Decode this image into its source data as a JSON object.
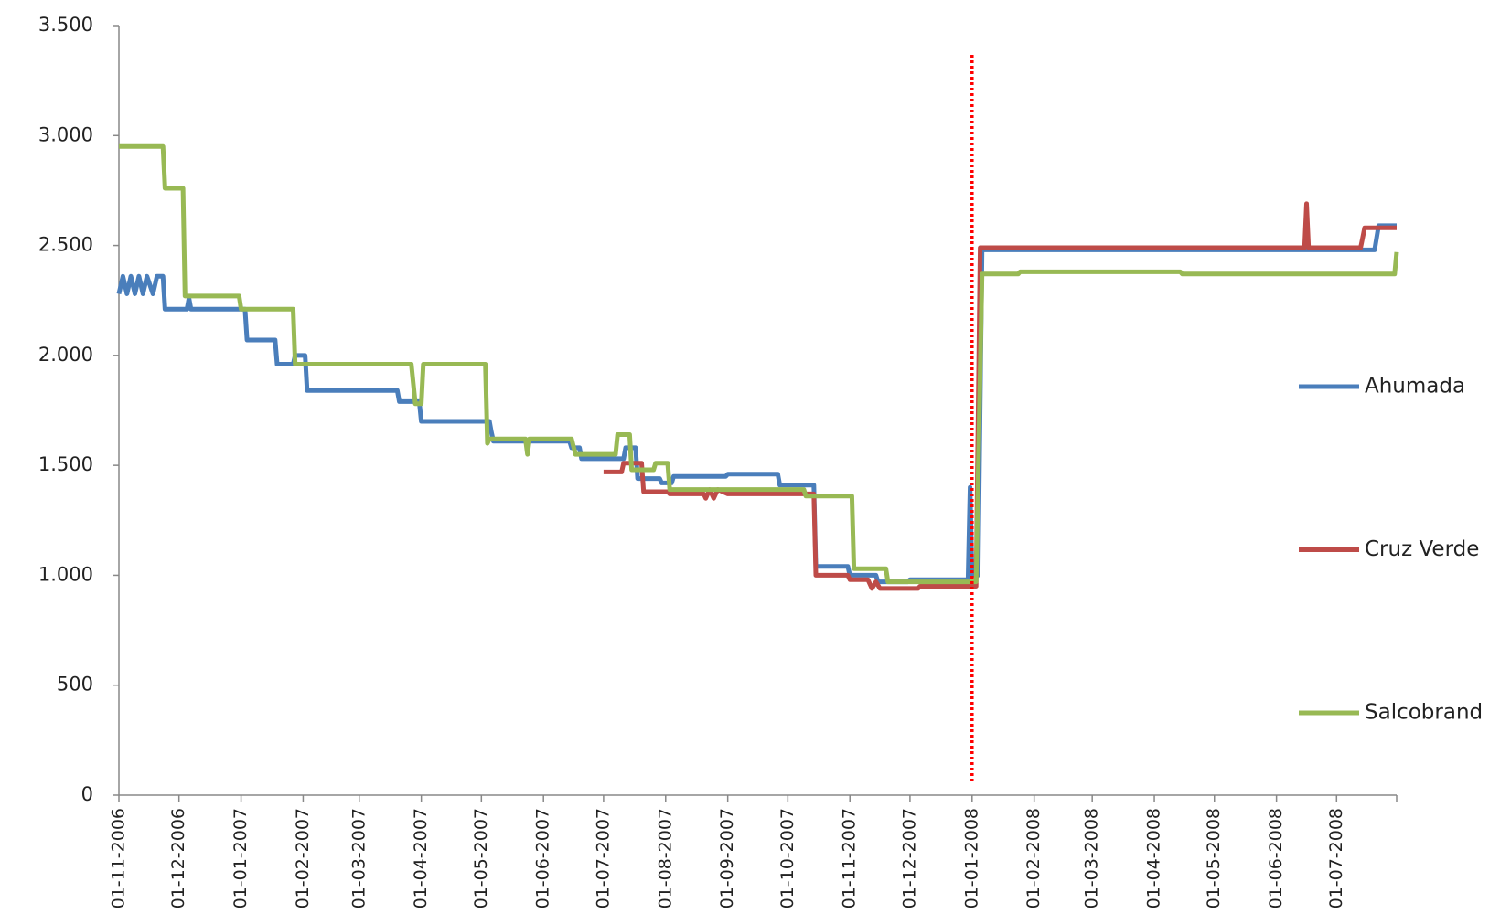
{
  "chart_data": {
    "type": "line",
    "xlim": [
      "2006-11-01",
      "2008-07-31"
    ],
    "xticks": [
      {
        "value": "2006-11-01",
        "label": "01-11-2006"
      },
      {
        "value": "2006-12-01",
        "label": "01-12-2006"
      },
      {
        "value": "2007-01-01",
        "label": "01-01-2007"
      },
      {
        "value": "2007-02-01",
        "label": "01-02-2007"
      },
      {
        "value": "2007-03-01",
        "label": "01-03-2007"
      },
      {
        "value": "2007-04-01",
        "label": "01-04-2007"
      },
      {
        "value": "2007-05-01",
        "label": "01-05-2007"
      },
      {
        "value": "2007-06-01",
        "label": "01-06-2007"
      },
      {
        "value": "2007-07-01",
        "label": "01-07-2007"
      },
      {
        "value": "2007-08-01",
        "label": "01-08-2007"
      },
      {
        "value": "2007-09-01",
        "label": "01-09-2007"
      },
      {
        "value": "2007-10-01",
        "label": "01-10-2007"
      },
      {
        "value": "2007-11-01",
        "label": "01-11-2007"
      },
      {
        "value": "2007-12-01",
        "label": "01-12-2007"
      },
      {
        "value": "2008-01-01",
        "label": "01-01-2008"
      },
      {
        "value": "2008-02-01",
        "label": "01-02-2008"
      },
      {
        "value": "2008-03-01",
        "label": "01-03-2008"
      },
      {
        "value": "2008-04-01",
        "label": "01-04-2008"
      },
      {
        "value": "2008-05-01",
        "label": "01-05-2008"
      },
      {
        "value": "2008-06-01",
        "label": "01-06-2008"
      },
      {
        "value": "2008-07-01",
        "label": "01-07-2008"
      }
    ],
    "ylim": [
      0,
      3500
    ],
    "yticks": [
      0,
      500,
      {
        "value": 1000,
        "label": "1.000"
      },
      {
        "value": 1500,
        "label": "1.500"
      },
      {
        "value": 2000,
        "label": "2.000"
      },
      {
        "value": 2500,
        "label": "2.500"
      },
      {
        "value": 3000,
        "label": "3.000"
      },
      {
        "value": 3500,
        "label": "3.500"
      }
    ],
    "vline": {
      "x": "2008-01-01",
      "color": "#ff0000"
    },
    "legend": "right",
    "series": [
      {
        "name": "Ahumada",
        "color": "#4a7ebb",
        "x": [
          "2006-11-01",
          "2006-11-03",
          "2006-11-05",
          "2006-11-07",
          "2006-11-09",
          "2006-11-11",
          "2006-11-13",
          "2006-11-15",
          "2006-11-18",
          "2006-11-20",
          "2006-11-23",
          "2006-11-24",
          "2006-12-05",
          "2006-12-06",
          "2006-12-07",
          "2007-01-03",
          "2007-01-04",
          "2007-01-18",
          "2007-01-19",
          "2007-01-27",
          "2007-01-28",
          "2007-02-02",
          "2007-02-03",
          "2007-03-20",
          "2007-03-21",
          "2007-03-31",
          "2007-04-01",
          "2007-05-05",
          "2007-05-06",
          "2007-05-07",
          "2007-06-14",
          "2007-06-15",
          "2007-06-19",
          "2007-06-20",
          "2007-07-11",
          "2007-07-12",
          "2007-07-17",
          "2007-07-18",
          "2007-07-29",
          "2007-07-30",
          "2007-08-04",
          "2007-08-05",
          "2007-08-31",
          "2007-09-01",
          "2007-09-26",
          "2007-09-27",
          "2007-10-14",
          "2007-10-15",
          "2007-10-31",
          "2007-11-01",
          "2007-11-14",
          "2007-11-15",
          "2007-11-30",
          "2007-12-01",
          "2007-12-30",
          "2007-12-31",
          "2008-01-01",
          "2008-01-04",
          "2008-01-06",
          "2008-07-20",
          "2008-07-22",
          "2008-07-31"
        ],
        "values": [
          2280,
          2360,
          2280,
          2360,
          2280,
          2360,
          2280,
          2360,
          2280,
          2360,
          2360,
          2210,
          2210,
          2260,
          2210,
          2210,
          2070,
          2070,
          1960,
          1960,
          2000,
          2000,
          1840,
          1840,
          1790,
          1790,
          1700,
          1700,
          1650,
          1610,
          1610,
          1580,
          1580,
          1530,
          1530,
          1580,
          1580,
          1440,
          1440,
          1420,
          1420,
          1450,
          1450,
          1460,
          1460,
          1410,
          1410,
          1040,
          1040,
          1000,
          1000,
          970,
          970,
          980,
          980,
          1400,
          1000,
          1000,
          2480,
          2480,
          2590,
          2590
        ]
      },
      {
        "name": "Cruz Verde",
        "color": "#be4b48",
        "x": [
          "2007-07-01",
          "2007-07-10",
          "2007-07-11",
          "2007-07-20",
          "2007-07-21",
          "2007-08-02",
          "2007-08-03",
          "2007-08-20",
          "2007-08-21",
          "2007-08-23",
          "2007-08-25",
          "2007-08-27",
          "2007-09-01",
          "2007-10-14",
          "2007-10-15",
          "2007-10-31",
          "2007-11-01",
          "2007-11-10",
          "2007-11-12",
          "2007-11-14",
          "2007-11-16",
          "2007-12-05",
          "2007-12-06",
          "2008-01-03",
          "2008-01-05",
          "2008-06-15",
          "2008-06-16",
          "2008-06-17",
          "2008-07-13",
          "2008-07-15",
          "2008-07-31"
        ],
        "values": [
          1470,
          1470,
          1510,
          1510,
          1380,
          1380,
          1370,
          1370,
          1350,
          1390,
          1350,
          1390,
          1370,
          1370,
          1000,
          1000,
          980,
          980,
          940,
          970,
          940,
          940,
          950,
          950,
          2490,
          2490,
          2690,
          2490,
          2490,
          2580,
          2580
        ]
      },
      {
        "name": "Salcobrand",
        "color": "#98b954",
        "x": [
          "2006-11-01",
          "2006-11-23",
          "2006-11-24",
          "2006-12-03",
          "2006-12-04",
          "2006-12-31",
          "2007-01-01",
          "2007-01-27",
          "2007-01-28",
          "2007-03-27",
          "2007-03-29",
          "2007-04-01",
          "2007-04-02",
          "2007-05-03",
          "2007-05-04",
          "2007-05-05",
          "2007-05-23",
          "2007-05-24",
          "2007-05-25",
          "2007-06-15",
          "2007-06-17",
          "2007-07-07",
          "2007-07-08",
          "2007-07-14",
          "2007-07-15",
          "2007-07-26",
          "2007-07-27",
          "2007-08-02",
          "2007-08-03",
          "2007-10-09",
          "2007-10-10",
          "2007-11-02",
          "2007-11-03",
          "2007-11-19",
          "2007-11-20",
          "2008-01-03",
          "2008-01-06",
          "2008-01-24",
          "2008-01-25",
          "2008-04-14",
          "2008-04-15",
          "2008-07-30",
          "2008-07-31"
        ],
        "values": [
          2950,
          2950,
          2760,
          2760,
          2270,
          2270,
          2210,
          2210,
          1960,
          1960,
          1780,
          1780,
          1960,
          1960,
          1600,
          1620,
          1620,
          1550,
          1620,
          1620,
          1550,
          1550,
          1640,
          1640,
          1480,
          1480,
          1510,
          1510,
          1390,
          1390,
          1360,
          1360,
          1030,
          1030,
          970,
          970,
          2370,
          2370,
          2380,
          2380,
          2370,
          2370,
          2470
        ]
      }
    ]
  }
}
